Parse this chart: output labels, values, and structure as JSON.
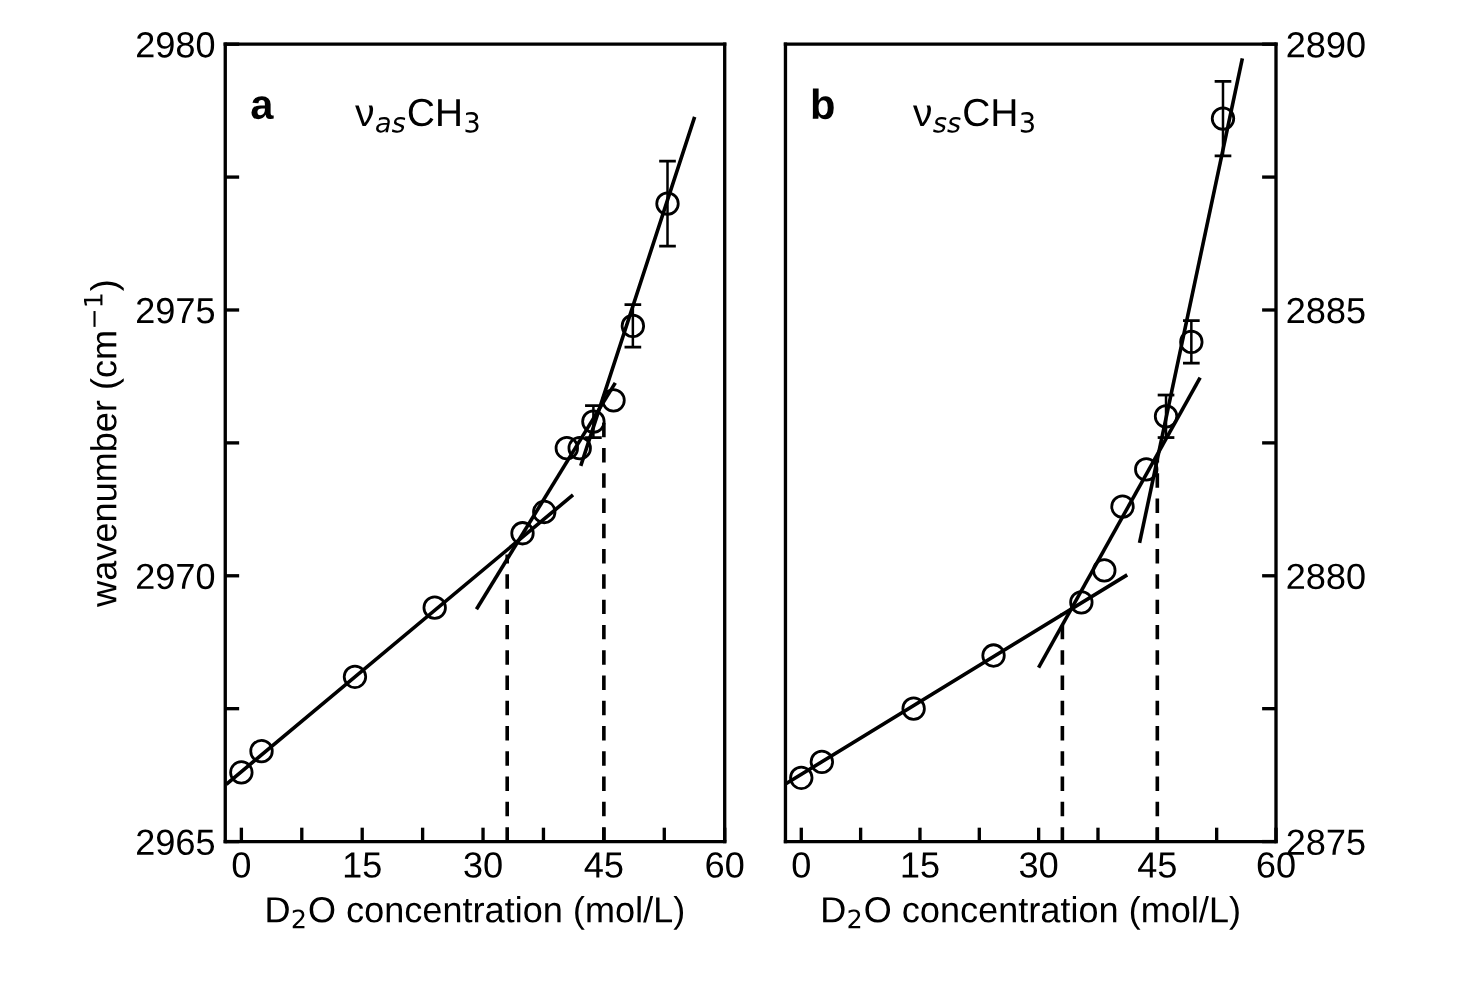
{
  "chart_data": [
    {
      "type": "scatter",
      "ylabel": "wavenumber (cm$^{−1}$)",
      "xlabel": "D$_{2}$O concentration (mol/L)",
      "annotations": [
        "a",
        "ν$_{as}$CH$_{3}$"
      ],
      "xlim": [
        -2,
        60
      ],
      "xticks": [
        0,
        {
          "value": 7.5,
          "label": null
        },
        15,
        {
          "value": 22.5,
          "label": null
        },
        30,
        {
          "value": 37.5,
          "label": null
        },
        45,
        {
          "value": 52.5,
          "label": null
        },
        60
      ],
      "ylim": [
        2965,
        2980
      ],
      "yticks": [
        2965,
        {
          "value": 2967.5,
          "label": null
        },
        2970,
        {
          "value": 2972.5,
          "label": null
        },
        2975,
        {
          "value": 2977.5,
          "label": null
        },
        2980
      ],
      "grid": false,
      "legend": false,
      "series": [
        {
          "marker": "circle",
          "color": "#000000",
          "x": [
            0,
            2.5,
            14.1,
            24,
            34.9,
            37.6,
            40.4,
            42,
            43.7,
            46.2,
            48.6,
            52.9
          ],
          "values": [
            2966.3,
            2966.7,
            2968.1,
            2969.4,
            2970.8,
            2971.2,
            2972.4,
            2972.4,
            2972.9,
            2973.3,
            2974.7,
            2977.0
          ],
          "errors": [
            null,
            null,
            null,
            null,
            null,
            null,
            null,
            null,
            0.3,
            null,
            0.4,
            0.8
          ]
        },
        {
          "type": "line",
          "color": "#000000",
          "line_style": "solid",
          "x": [
            -1.7,
            41
          ],
          "values": [
            2966.1,
            2971.5
          ]
        },
        {
          "type": "line",
          "color": "#000000",
          "line_style": "solid",
          "x": [
            29.3,
            46.3
          ],
          "values": [
            2969.4,
            2973.6
          ]
        },
        {
          "type": "line",
          "color": "#000000",
          "line_style": "solid",
          "x": [
            42.2,
            56.2
          ],
          "values": [
            2972.1,
            2978.6
          ]
        },
        {
          "type": "line",
          "color": "#000000",
          "line_style": "dashed",
          "x": [
            33,
            33
          ],
          "values": [
            2965,
            2970.4
          ]
        },
        {
          "type": "line",
          "color": "#000000",
          "line_style": "dashed",
          "x": [
            45,
            45
          ],
          "values": [
            2965,
            2973.0
          ]
        }
      ]
    },
    {
      "type": "scatter",
      "xlabel": "D$_{2}$O concentration (mol/L)",
      "annotations": [
        "b",
        "ν$_{ss}$CH$_{3}$"
      ],
      "xlim": [
        -2,
        60
      ],
      "xticks": [
        0,
        {
          "value": 7.5,
          "label": null
        },
        15,
        {
          "value": 22.5,
          "label": null
        },
        30,
        {
          "value": 37.5,
          "label": null
        },
        45,
        {
          "value": 52.5,
          "label": null
        },
        60
      ],
      "y2lim": [
        2875,
        2890
      ],
      "y2ticks": [
        2875,
        {
          "value": 2877.5,
          "label": null
        },
        2880,
        {
          "value": 2882.5,
          "label": null
        },
        2885,
        {
          "value": 2887.5,
          "label": null
        },
        2890
      ],
      "grid": false,
      "legend": false,
      "series": [
        {
          "marker": "circle",
          "axis": "y2",
          "color": "#000000",
          "x": [
            0,
            2.6,
            14.2,
            24.3,
            35.4,
            38.3,
            40.6,
            43.6,
            46.1,
            49.3,
            53.3
          ],
          "values": [
            2876.2,
            2876.5,
            2877.5,
            2878.5,
            2879.5,
            2880.1,
            2881.3,
            2882.0,
            2883.0,
            2884.4,
            2888.6
          ],
          "errors": [
            null,
            null,
            null,
            null,
            null,
            null,
            null,
            null,
            0.4,
            0.4,
            0.7
          ]
        },
        {
          "type": "line",
          "axis": "y2",
          "color": "#000000",
          "line_style": "solid",
          "x": [
            -1.8,
            41
          ],
          "values": [
            2876.1,
            2880.0
          ]
        },
        {
          "type": "line",
          "axis": "y2",
          "color": "#000000",
          "line_style": "solid",
          "x": [
            30.1,
            50.3
          ],
          "values": [
            2878.3,
            2883.7
          ]
        },
        {
          "type": "line",
          "axis": "y2",
          "color": "#000000",
          "line_style": "solid",
          "x": [
            42.8,
            55.7
          ],
          "values": [
            2880.65,
            2889.7
          ]
        },
        {
          "type": "line",
          "axis": "y2",
          "color": "#000000",
          "line_style": "dashed",
          "x": [
            33,
            33
          ],
          "values": [
            2875,
            2879.3
          ]
        },
        {
          "type": "line",
          "axis": "y2",
          "color": "#000000",
          "line_style": "dashed",
          "x": [
            45,
            45
          ],
          "values": [
            2875,
            2882.2
          ]
        }
      ]
    }
  ]
}
